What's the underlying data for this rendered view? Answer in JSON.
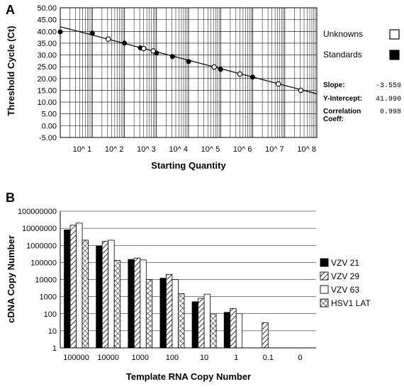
{
  "chart_data": [
    {
      "type": "scatter",
      "panel_label": "A",
      "xlabel": "Starting Quantity",
      "ylabel": "Threshold Cycle (Ct)",
      "xscale": "log",
      "x_ticks": [
        "10^ 1",
        "10^ 2",
        "10^ 3",
        "10^ 4",
        "10^ 5",
        "10^ 6",
        "10^ 7",
        "10^ 8"
      ],
      "y_ticks": [
        "50.00",
        "45.00",
        "40.00",
        "35.00",
        "30.00",
        "25.00",
        "20.00",
        "15.00",
        "10.00",
        "5.00",
        "0.00",
        "-5.00"
      ],
      "ylim": [
        -5,
        50
      ],
      "xlim_log10": [
        0.0,
        8.0
      ],
      "grid": true,
      "legend_placement": "right",
      "series": [
        {
          "name": "Unknowns",
          "marker": "open-circle",
          "log10_x": [
            1.5,
            2.6,
            2.9,
            4.8,
            5.6,
            6.8,
            7.5
          ],
          "y": [
            36.7,
            32.7,
            31.7,
            24.9,
            21.9,
            17.7,
            15.0
          ]
        },
        {
          "name": "Standards",
          "marker": "filled-circle",
          "log10_x": [
            0.0,
            1.0,
            2.0,
            2.5,
            3.0,
            3.5,
            4.0,
            5.0,
            6.0
          ],
          "y": [
            39.8,
            39.2,
            35.0,
            33.0,
            30.8,
            29.3,
            27.2,
            23.9,
            20.6
          ]
        }
      ],
      "stats": [
        {
          "label": "Slope:",
          "value": "-3.559"
        },
        {
          "label": "Y-Intercept:",
          "value": "41.990"
        },
        {
          "label": "Correlation",
          "value": "0.998"
        },
        {
          "label": "Coeff:",
          "value": ""
        }
      ],
      "fit": {
        "slope": -3.559,
        "intercept": 41.99
      }
    },
    {
      "type": "bar",
      "panel_label": "B",
      "xlabel": "Template RNA Copy Number",
      "ylabel": "cDNA Copy Number",
      "yscale": "log",
      "ylim": [
        1,
        100000000
      ],
      "y_ticks": [
        "100000000",
        "10000000",
        "1000000",
        "100000",
        "10000",
        "1000",
        "100",
        "10",
        "1"
      ],
      "categories": [
        "100000",
        "10000",
        "1000",
        "100",
        "10",
        "1",
        "0.1",
        "0"
      ],
      "legend_placement": "right",
      "series": [
        {
          "name": "VZV 21",
          "pattern": "solid-black",
          "values": [
            8000000,
            900000,
            150000,
            12000,
            500,
            120,
            null,
            null
          ]
        },
        {
          "name": "VZV 29",
          "pattern": "diagonal-hatch",
          "values": [
            15000000,
            1700000,
            180000,
            20000,
            800,
            200,
            30,
            null
          ]
        },
        {
          "name": "VZV 63",
          "pattern": "open-white",
          "values": [
            20000000,
            2000000,
            140000,
            10000,
            1400,
            100,
            null,
            null
          ]
        },
        {
          "name": "HSV1 LAT",
          "pattern": "cross-hatch",
          "values": [
            2000000,
            130000,
            10000,
            1500,
            100,
            null,
            null,
            null
          ]
        }
      ]
    }
  ]
}
